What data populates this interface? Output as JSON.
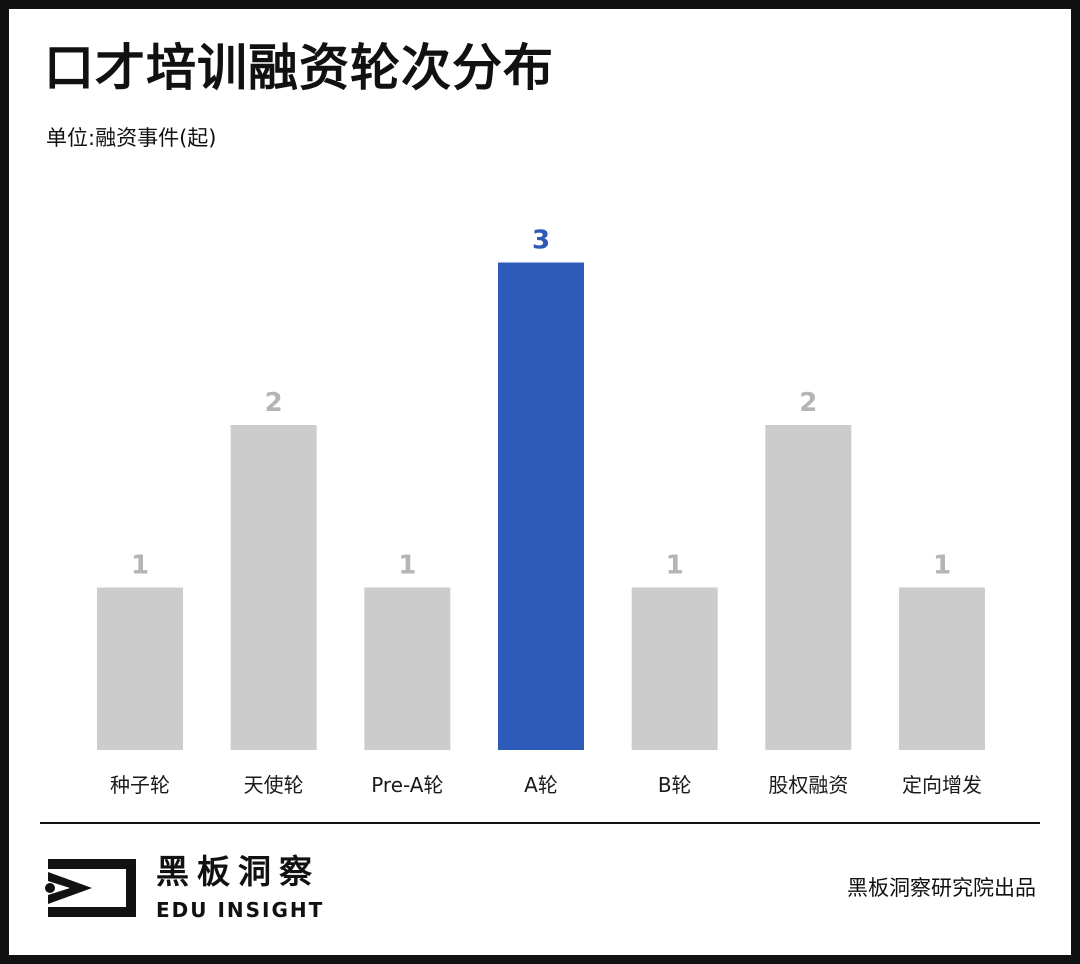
{
  "header": {
    "title": "口才培训融资轮次分布",
    "unit": "单位:融资事件(起)"
  },
  "colors": {
    "highlight": "#2d59b8",
    "bar": "#cccccc",
    "muted_label": "#b5b5b5",
    "text": "#1a1a1a"
  },
  "chart_data": {
    "type": "bar",
    "title": "口才培训融资轮次分布",
    "ylabel": "单位:融资事件(起)",
    "categories": [
      "种子轮",
      "天使轮",
      "Pre-A轮",
      "A轮",
      "B轮",
      "股权融资",
      "定向增发"
    ],
    "values": [
      1,
      2,
      1,
      3,
      1,
      2,
      1
    ],
    "highlight_category": "A轮",
    "ylim": [
      0,
      3
    ],
    "grid": false,
    "legend": "none"
  },
  "footer": {
    "brand_cn": "黑板洞察",
    "brand_en": "EDU INSIGHT",
    "credit": "黑板洞察研究院出品"
  }
}
